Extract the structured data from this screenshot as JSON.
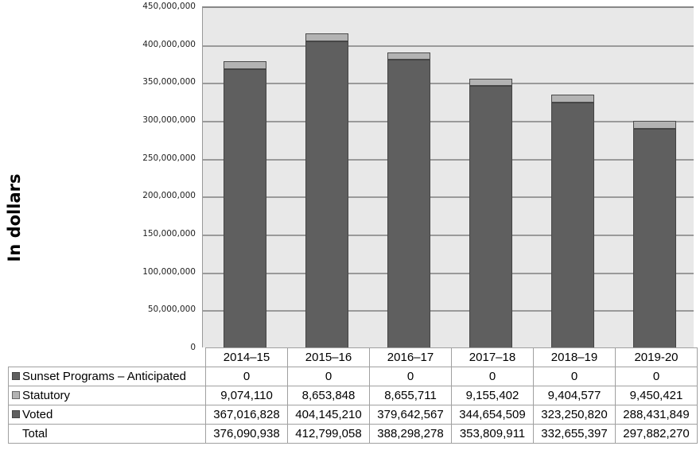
{
  "chart_data": {
    "type": "bar",
    "stacked": true,
    "title": "",
    "xlabel": "",
    "ylabel": "In dollars",
    "ylim": [
      0,
      450000000
    ],
    "yticks": [
      "0",
      "50,000,000",
      "100,000,000",
      "150,000,000",
      "200,000,000",
      "250,000,000",
      "300,000,000",
      "350,000,000",
      "400,000,000",
      "450,000,000"
    ],
    "grid": true,
    "legend_position": "data-table",
    "categories": [
      "2014–15",
      "2015–16",
      "2016–17",
      "2017–18",
      "2018–19",
      "2019-20"
    ],
    "series": [
      {
        "name": "Sunset Programs – Anticipated",
        "color": "#5f5f5f",
        "values": [
          0,
          0,
          0,
          0,
          0,
          0
        ],
        "labels": [
          "0",
          "0",
          "0",
          "0",
          "0",
          "0"
        ]
      },
      {
        "name": "Statutory",
        "color": "#b3b3b3",
        "values": [
          9074110,
          8653848,
          8655711,
          9155402,
          9404577,
          9450421
        ],
        "labels": [
          "9,074,110",
          "8,653,848",
          "8,655,711",
          "9,155,402",
          "9,404,577",
          "9,450,421"
        ]
      },
      {
        "name": "Voted",
        "color": "#5f5f5f",
        "values": [
          367016828,
          404145210,
          379642567,
          344654509,
          323250820,
          288431849
        ],
        "labels": [
          "367,016,828",
          "404,145,210",
          "379,642,567",
          "344,654,509",
          "323,250,820",
          "288,431,849"
        ]
      }
    ],
    "totals": {
      "name": "Total",
      "values": [
        376090938,
        412799058,
        388298278,
        353809911,
        332655397,
        297882270
      ],
      "labels": [
        "376,090,938",
        "412,799,058",
        "388,298,278",
        "353,809,911",
        "332,655,397",
        "297,882,270"
      ]
    }
  },
  "colors": {
    "plot_background": "#e8e8e8",
    "gridline": "#9a9a9a",
    "voted": "#5f5f5f",
    "statutory": "#b3b3b3"
  }
}
